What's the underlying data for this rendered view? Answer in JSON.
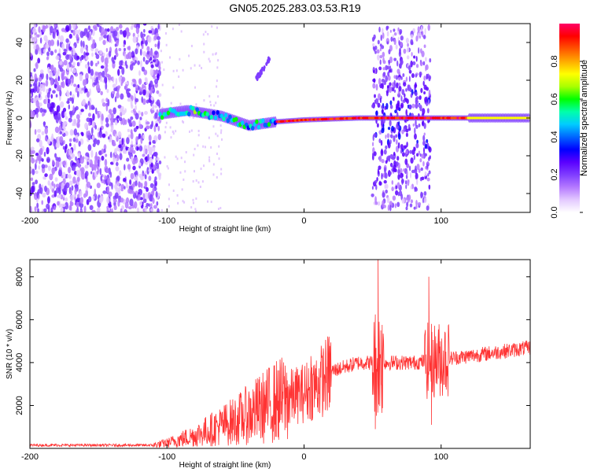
{
  "title": "GN05.2025.283.03.53.R19",
  "chart_data": [
    {
      "type": "heatmap",
      "title": "GN05.2025.283.03.53.R19",
      "xlabel": "Height of straight line (km)",
      "ylabel": "Frequency (Hz)",
      "xlim": [
        -200,
        165
      ],
      "ylim": [
        -50,
        50
      ],
      "xticks": [
        -200,
        -100,
        0,
        100
      ],
      "yticks": [
        -40,
        -20,
        0,
        20,
        40
      ],
      "grid": false,
      "colorbar": {
        "label": "Normalized spectral amplitude",
        "range": [
          0,
          1
        ],
        "ticks": [
          "0.0",
          "0.2",
          "0.4",
          "0.6",
          "0.8"
        ],
        "colors": [
          "#ffffff",
          "#e3c9ff",
          "#b57aff",
          "#7f3dff",
          "#5a00ff",
          "#0000ff",
          "#0066ff",
          "#00ccff",
          "#00ffaa",
          "#00ff00",
          "#aaff00",
          "#ffff00",
          "#ffaa00",
          "#ff5500",
          "#ff0000",
          "#ff0066"
        ]
      },
      "features": {
        "noise_region_x": [
          -200,
          -105
        ],
        "carrier_start_x": -105,
        "carrier_drift": [
          {
            "x": -105,
            "f": 2
          },
          {
            "x": -85,
            "f": 4
          },
          {
            "x": -60,
            "f": 1
          },
          {
            "x": -40,
            "f": -4
          },
          {
            "x": -20,
            "f": -2
          },
          {
            "x": 0,
            "f": -1
          },
          {
            "x": 40,
            "f": 0
          },
          {
            "x": 165,
            "f": 0
          }
        ],
        "burst_regions_x": [
          [
            50,
            92
          ]
        ],
        "small_feature": {
          "x_range": [
            -35,
            -25
          ],
          "f_range": [
            20,
            32
          ]
        }
      }
    },
    {
      "type": "line",
      "xlabel": "Height of straight line (km)",
      "ylabel": "SNR (10 * v/v)",
      "xlim": [
        -200,
        165
      ],
      "ylim": [
        0,
        8800
      ],
      "xticks": [
        -200,
        -100,
        0,
        100
      ],
      "yticks": [
        2000,
        4000,
        6000,
        8000
      ],
      "grid": false,
      "color": "#ff3333",
      "trend": [
        {
          "x": -200,
          "y": 150
        },
        {
          "x": -110,
          "y": 150
        },
        {
          "x": -100,
          "y": 250
        },
        {
          "x": -80,
          "y": 600
        },
        {
          "x": -50,
          "y": 1300
        },
        {
          "x": -20,
          "y": 2200
        },
        {
          "x": 0,
          "y": 2600
        },
        {
          "x": 10,
          "y": 3000
        },
        {
          "x": 20,
          "y": 3600
        },
        {
          "x": 40,
          "y": 4000
        },
        {
          "x": 80,
          "y": 4000
        },
        {
          "x": 120,
          "y": 4300
        },
        {
          "x": 165,
          "y": 4700
        }
      ],
      "spikes": [
        {
          "x": 54,
          "y": 8800
        },
        {
          "x": 56,
          "y": 5500
        },
        {
          "x": 52,
          "y": 900
        },
        {
          "x": 91,
          "y": 8000
        },
        {
          "x": 93,
          "y": 1100
        },
        {
          "x": 103,
          "y": 5400
        },
        {
          "x": 5,
          "y": 4300
        }
      ]
    }
  ]
}
